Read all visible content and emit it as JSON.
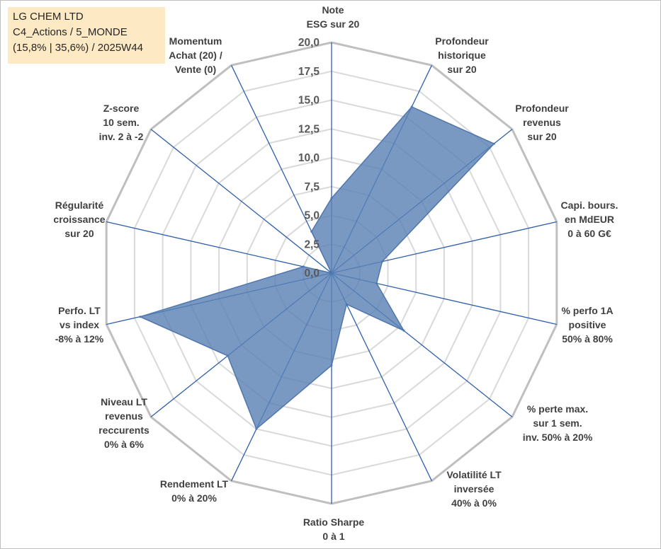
{
  "info": {
    "company": "LG CHEM LTD",
    "category": "C4_Actions / 5_MONDE",
    "stats": "(15,8% | 35,6%) / 2025W44"
  },
  "colors": {
    "fill": "#5b83b6",
    "stroke": "#4f76ad",
    "spoke": "#2f5faa",
    "grid_outer": "#bfbfbf",
    "grid_inner": "#d9d9d9",
    "label": "#404040",
    "tick": "#595959"
  },
  "chart_data": {
    "type": "radar",
    "range": [
      0,
      20
    ],
    "tick_step": 2.5,
    "tick_labels": [
      "0,0",
      "2,5",
      "5,0",
      "7,5",
      "10,0",
      "12,5",
      "15,0",
      "17,5",
      "20,0"
    ],
    "axes": [
      {
        "name": "esg",
        "label": [
          "Note",
          "ESG sur 20"
        ],
        "value": 6.5
      },
      {
        "name": "profondeur-historique",
        "label": [
          "Profondeur",
          "historique",
          "sur 20"
        ],
        "value": 16.0
      },
      {
        "name": "profondeur-revenus",
        "label": [
          "Profondeur",
          "revenus",
          "sur 20"
        ],
        "value": 18.0
      },
      {
        "name": "capi-bours",
        "label": [
          "Capi. bours.",
          "en MdEUR",
          "0 à 60 G€"
        ],
        "value": 4.5
      },
      {
        "name": "perfo-1a",
        "label": [
          "% perfo 1A",
          "positive",
          "50% à 80%"
        ],
        "value": 4.0
      },
      {
        "name": "perte-max",
        "label": [
          "% perte max.",
          "sur 1 sem.",
          "inv. 50% à 20%"
        ],
        "value": 8.0
      },
      {
        "name": "volatilite-lt",
        "label": [
          "Volatilité LT",
          "inversée",
          "40% à 0%"
        ],
        "value": 3.0
      },
      {
        "name": "ratio-sharpe",
        "label": [
          "Ratio Sharpe",
          "0 à 1"
        ],
        "value": 8.0
      },
      {
        "name": "rendement-lt",
        "label": [
          "Rendement LT",
          "0% à 20%"
        ],
        "value": 15.0
      },
      {
        "name": "niveau-lt-revenus",
        "label": [
          "Niveau LT",
          "revenus",
          "reccurents",
          "0% à 6%"
        ],
        "value": 11.5
      },
      {
        "name": "perfo-lt-index",
        "label": [
          "Perfo. LT",
          "vs index",
          "-8% à 12%"
        ],
        "value": 17.0
      },
      {
        "name": "regularite-croissance",
        "label": [
          "Régularité",
          "croissance",
          "sur 20"
        ],
        "value": 2.5
      },
      {
        "name": "z-score",
        "label": [
          "Z-score",
          "10 sem.",
          "inv. 2 à -2"
        ],
        "value": 0.0
      },
      {
        "name": "momentum",
        "label": [
          "Momentum",
          "Achat (20) /",
          "Vente (0)"
        ],
        "value": 4.0
      }
    ]
  }
}
